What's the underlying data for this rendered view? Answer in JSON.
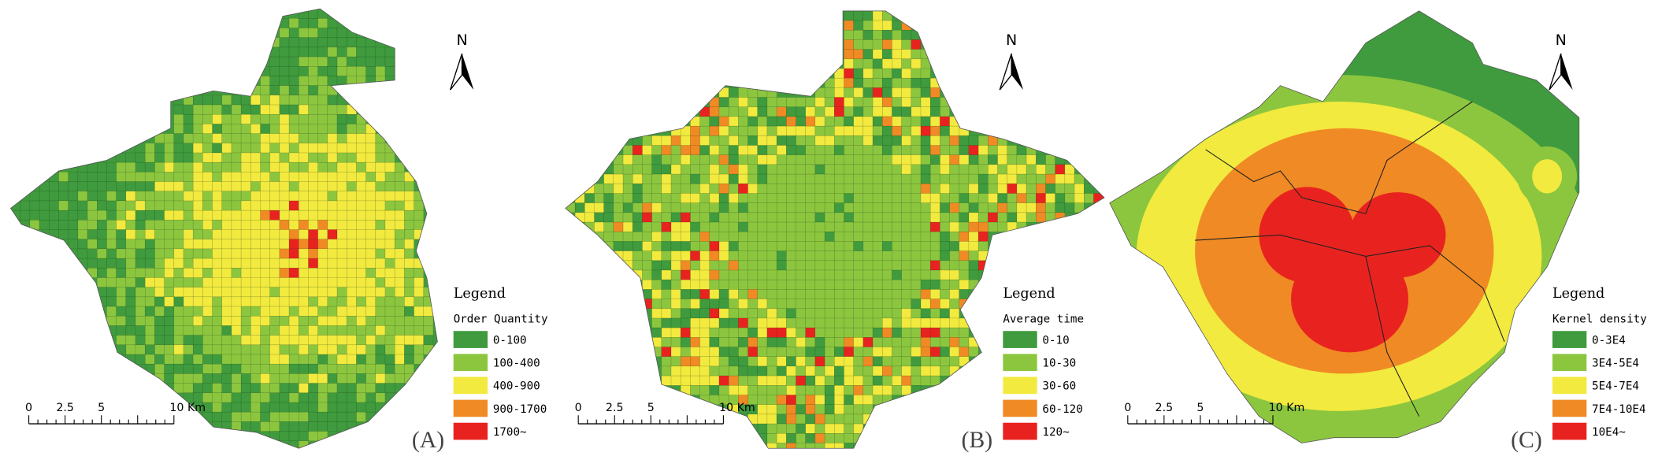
{
  "panels": [
    {
      "label": "(A)",
      "north": "N",
      "legend": {
        "title": "Legend",
        "field": "Order Quantity",
        "classes": [
          {
            "label": "0-100",
            "color": "#3f9b3d"
          },
          {
            "label": "100-400",
            "color": "#8cc63f"
          },
          {
            "label": "400-900",
            "color": "#f2ea3e"
          },
          {
            "label": "900-1700",
            "color": "#f08a24"
          },
          {
            "label": "1700~",
            "color": "#e8231f"
          }
        ]
      },
      "scale_bar": [
        "0",
        "2.5",
        "5",
        "10 Km"
      ]
    },
    {
      "label": "(B)",
      "north": "N",
      "legend": {
        "title": "Legend",
        "field": "Average time",
        "classes": [
          {
            "label": "0-10",
            "color": "#3f9b3d"
          },
          {
            "label": "10-30",
            "color": "#8cc63f"
          },
          {
            "label": "30-60",
            "color": "#f2ea3e"
          },
          {
            "label": "60-120",
            "color": "#f08a24"
          },
          {
            "label": "120~",
            "color": "#e8231f"
          }
        ]
      },
      "scale_bar": [
        "0",
        "2.5",
        "5",
        "10 Km"
      ]
    },
    {
      "label": "(C)",
      "north": "N",
      "legend": {
        "title": "Legend",
        "field": "Kernel density",
        "classes": [
          {
            "label": "0-3E4",
            "color": "#3f9b3d"
          },
          {
            "label": "3E4-5E4",
            "color": "#8cc63f"
          },
          {
            "label": "5E4-7E4",
            "color": "#f2ea3e"
          },
          {
            "label": "7E4-10E4",
            "color": "#f08a24"
          },
          {
            "label": "10E4~",
            "color": "#e8231f"
          }
        ]
      },
      "scale_bar": [
        "0",
        "2.5",
        "5",
        "10 Km"
      ]
    }
  ]
}
